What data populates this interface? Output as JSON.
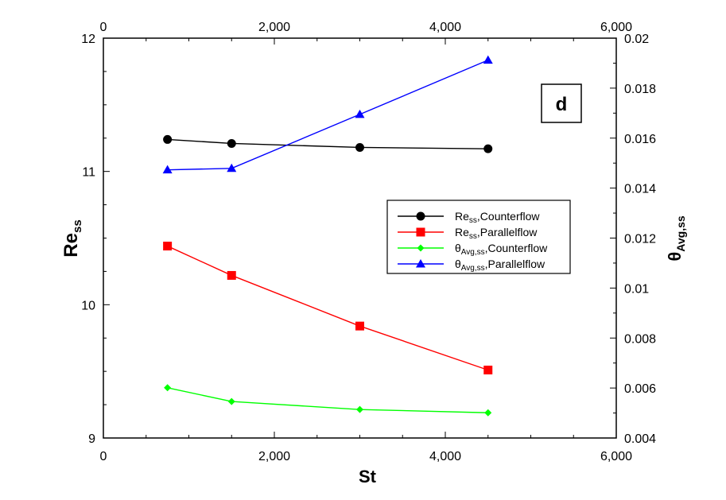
{
  "chart_data": {
    "type": "line",
    "panel_label": "d",
    "xlabel": "St",
    "ylabel_left": {
      "base": "Re",
      "sub": "ss"
    },
    "ylabel_right": {
      "base": "θ",
      "sub": "Avg,ss"
    },
    "xlim": [
      0,
      6000
    ],
    "ylim_left": [
      9,
      12
    ],
    "ylim_right": [
      0.004,
      0.02
    ],
    "x_ticks": [
      0,
      2000,
      4000,
      6000
    ],
    "x_tick_labels": [
      "0",
      "2,000",
      "4,000",
      "6,000"
    ],
    "y_left_ticks": [
      9,
      10,
      11,
      12
    ],
    "y_left_tick_labels": [
      "9",
      "10",
      "11",
      "12"
    ],
    "y_right_ticks": [
      0.004,
      0.006,
      0.008,
      0.01,
      0.012,
      0.014,
      0.016,
      0.018,
      0.02
    ],
    "y_right_tick_labels": [
      "0.004",
      "0.006",
      "0.008",
      "0.01",
      "0.012",
      "0.014",
      "0.016",
      "0.018",
      "0.02"
    ],
    "grid": false,
    "legend_position": "right-middle",
    "series": [
      {
        "name_base": "Re",
        "name_sub": "ss",
        "name_rest": ",Counterflow",
        "axis": "left",
        "color": "#000000",
        "marker": "circle",
        "x": [
          750,
          1500,
          3000,
          4500
        ],
        "y": [
          11.24,
          11.21,
          11.18,
          11.17
        ]
      },
      {
        "name_base": "Re",
        "name_sub": "ss",
        "name_rest": ",Parallelflow",
        "axis": "left",
        "color": "#ff0000",
        "marker": "square",
        "x": [
          750,
          1500,
          3000,
          4500
        ],
        "y": [
          10.44,
          10.22,
          9.84,
          9.51
        ]
      },
      {
        "name_base": "θ",
        "name_sub": "Avg,ss",
        "name_rest": ",Counterflow",
        "axis": "right",
        "color": "#00ff00",
        "marker": "diamond",
        "x": [
          750,
          1500,
          3000,
          4500
        ],
        "y": [
          0.00601,
          0.00546,
          0.00514,
          0.00501
        ]
      },
      {
        "name_base": "θ",
        "name_sub": "Avg,ss",
        "name_rest": ",Parallelflow",
        "axis": "right",
        "color": "#0000ff",
        "marker": "triangle",
        "x": [
          750,
          1500,
          3000,
          4500
        ],
        "y": [
          0.01473,
          0.01479,
          0.01695,
          0.01912
        ]
      }
    ]
  }
}
